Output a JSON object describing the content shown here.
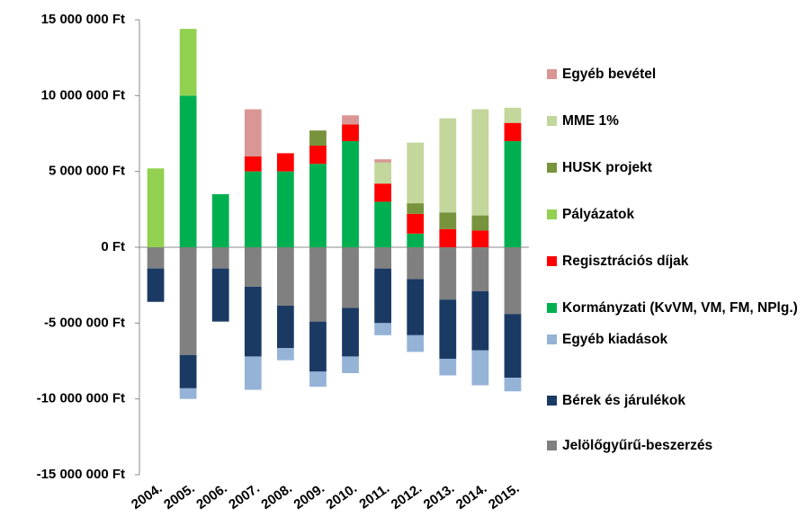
{
  "chart_data": {
    "type": "stacked-bar",
    "categories": [
      "2004.",
      "2005.",
      "2006.",
      "2007.",
      "2008.",
      "2009.",
      "2010.",
      "2011.",
      "2012.",
      "2013.",
      "2014.",
      "2015."
    ],
    "series": [
      {
        "name": "Jelölőgyűrű-beszerzés",
        "color": "#808080",
        "values": [
          -1400000,
          -7100000,
          -1400000,
          -2600000,
          -3850000,
          -4900000,
          -4000000,
          -1400000,
          -2100000,
          -3450000,
          -2900000,
          -4400000
        ]
      },
      {
        "name": "Bérek és járulékok",
        "color": "#1a3a64",
        "values": [
          -2200000,
          -2200000,
          -3500000,
          -4600000,
          -2800000,
          -3300000,
          -3200000,
          -3600000,
          -3700000,
          -3900000,
          -3900000,
          -4200000
        ]
      },
      {
        "name": "Egyéb kiadások",
        "color": "#95b3d7",
        "values": [
          0,
          -700000,
          0,
          -2200000,
          -800000,
          -1000000,
          -1100000,
          -800000,
          -1100000,
          -1100000,
          -2300000,
          -900000
        ]
      },
      {
        "name": "Kormányzati (KvVM, VM, FM, NPlg.)",
        "color": "#00b050",
        "values": [
          0,
          10000000,
          3500000,
          5000000,
          5000000,
          5500000,
          7000000,
          3000000,
          900000,
          0,
          0,
          7000000
        ]
      },
      {
        "name": "Regisztrációs díjak",
        "color": "#ff0000",
        "values": [
          0,
          0,
          0,
          1000000,
          1200000,
          1200000,
          1100000,
          1200000,
          1300000,
          1200000,
          1100000,
          1200000
        ]
      },
      {
        "name": "Pályázatok",
        "color": "#92d050",
        "values": [
          5200000,
          4400000,
          0,
          0,
          0,
          0,
          0,
          0,
          0,
          0,
          0,
          0
        ]
      },
      {
        "name": "HUSK projekt",
        "color": "#77933c",
        "values": [
          0,
          0,
          0,
          0,
          0,
          1000000,
          0,
          0,
          700000,
          1100000,
          1000000,
          0
        ]
      },
      {
        "name": "MME 1%",
        "color": "#c3d69b",
        "values": [
          0,
          0,
          0,
          0,
          0,
          0,
          0,
          1400000,
          4000000,
          6200000,
          7000000,
          1000000
        ]
      },
      {
        "name": "Egyéb bevétel",
        "color": "#d99694",
        "values": [
          0,
          0,
          0,
          3100000,
          0,
          0,
          600000,
          200000,
          0,
          0,
          0,
          0
        ]
      }
    ],
    "ylim": [
      -15000000,
      15000000
    ],
    "yticks": [
      {
        "value": -15000000,
        "label": "-15 000 000 Ft"
      },
      {
        "value": -10000000,
        "label": "-10 000 000 Ft"
      },
      {
        "value": -5000000,
        "label": "-5 000 000 Ft"
      },
      {
        "value": 0,
        "label": "0 Ft"
      },
      {
        "value": 5000000,
        "label": "5 000 000 Ft"
      },
      {
        "value": 10000000,
        "label": "10 000 000 Ft"
      },
      {
        "value": 15000000,
        "label": "15 000 000 Ft"
      }
    ],
    "grid": false,
    "legend": "right"
  }
}
